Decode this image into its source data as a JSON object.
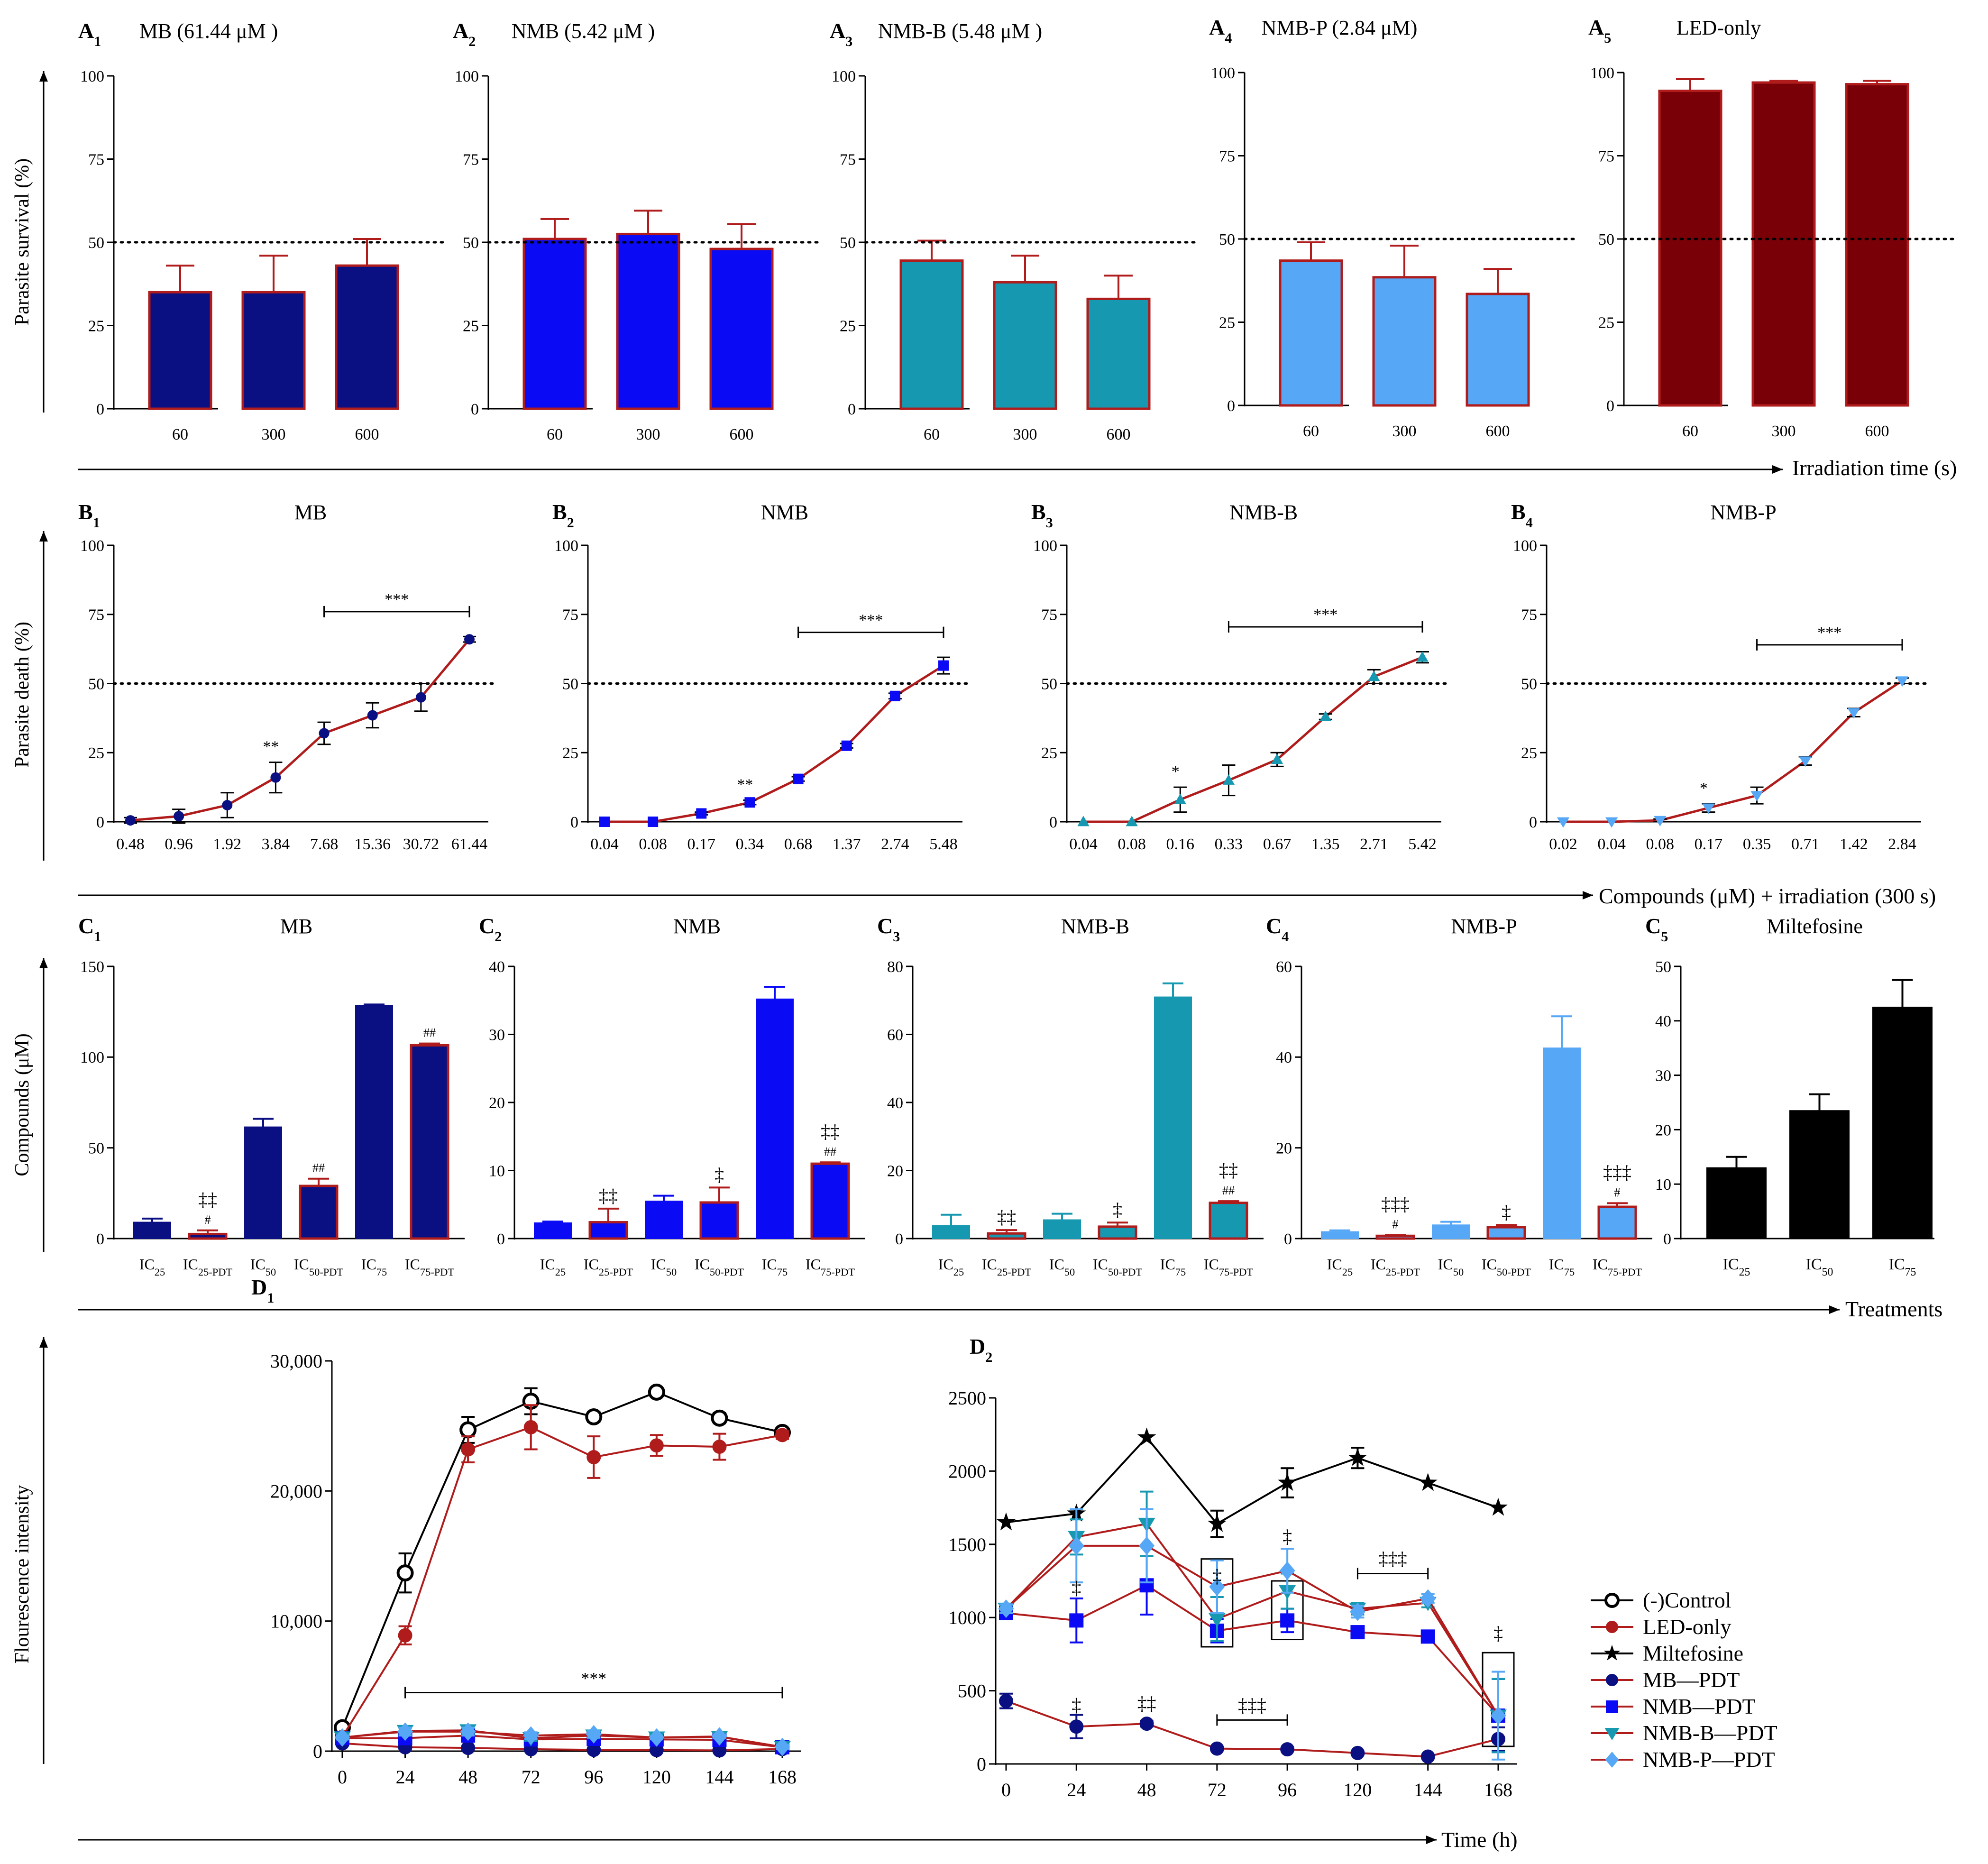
{
  "figure": {
    "rows": [
      {
        "id": "A",
        "y_title": "Parasite survival (%)",
        "x_title": "Irradiation time (s)"
      },
      {
        "id": "B",
        "y_title": "Parasite death (%)",
        "x_title": "Compounds (μM) + irradiation (300 s)"
      },
      {
        "id": "C",
        "y_title": "Compounds (μM)",
        "x_title": "Treatments"
      },
      {
        "id": "D",
        "y_title": "Flourescence intensity",
        "x_title": "Time (h)"
      }
    ],
    "legend": [
      "(-)Control",
      "LED-only",
      "Miltefosine",
      "MB—PDT",
      "NMB—PDT",
      "NMB-B—PDT",
      "NMB-P—PDT"
    ]
  },
  "colors": {
    "MB": "#0a0f82",
    "NMB": "#0a0af5",
    "NMB-B": "#1698b0",
    "NMB-P": "#56a7f5",
    "LED": "#7a0008",
    "red": "#b01c1c",
    "black": "#000000",
    "grid": "#000000"
  },
  "chart_data": [
    {
      "id": "A1",
      "label": "A",
      "sub": "1",
      "type": "bar",
      "title": "MB (61.44 μM )",
      "color": "MB",
      "categories": [
        "60",
        "300",
        "600"
      ],
      "values": [
        35,
        35,
        43
      ],
      "errors": [
        8,
        11,
        8
      ],
      "ylim": [
        0,
        100
      ],
      "yticks": [
        0,
        25,
        50,
        75,
        100
      ],
      "threshold": 50
    },
    {
      "id": "A2",
      "label": "A",
      "sub": "2",
      "type": "bar",
      "title": "NMB (5.42 μM )",
      "color": "NMB",
      "categories": [
        "60",
        "300",
        "600"
      ],
      "values": [
        51,
        52.5,
        48
      ],
      "errors": [
        6,
        7,
        7.5
      ],
      "ylim": [
        0,
        100
      ],
      "yticks": [
        0,
        25,
        50,
        75,
        100
      ],
      "threshold": 50
    },
    {
      "id": "A3",
      "label": "A",
      "sub": "3",
      "type": "bar",
      "title": "NMB-B (5.48 μM )",
      "color": "NMB-B",
      "categories": [
        "60",
        "300",
        "600"
      ],
      "values": [
        44.5,
        38,
        33
      ],
      "errors": [
        6,
        8,
        7
      ],
      "ylim": [
        0,
        100
      ],
      "yticks": [
        0,
        25,
        50,
        75,
        100
      ],
      "threshold": 50
    },
    {
      "id": "A4",
      "label": "A",
      "sub": "4",
      "type": "bar",
      "title": "NMB-P (2.84 μM)",
      "color": "NMB-P",
      "categories": [
        "60",
        "300",
        "600"
      ],
      "values": [
        43.5,
        38.5,
        33.5
      ],
      "errors": [
        5.5,
        9.5,
        7.5
      ],
      "ylim": [
        0,
        100
      ],
      "yticks": [
        0,
        25,
        50,
        75,
        100
      ],
      "threshold": 50
    },
    {
      "id": "A5",
      "label": "A",
      "sub": "5",
      "type": "bar",
      "title": "LED-only",
      "color": "LED",
      "categories": [
        "60",
        "300",
        "600"
      ],
      "values": [
        94.5,
        97,
        96.5
      ],
      "errors": [
        3.5,
        0.5,
        1
      ],
      "ylim": [
        0,
        100
      ],
      "yticks": [
        0,
        25,
        50,
        75,
        100
      ],
      "threshold": 50
    },
    {
      "id": "B1",
      "label": "B",
      "sub": "1",
      "type": "line",
      "title": "MB",
      "color": "MB",
      "marker": "circle",
      "categories": [
        "0.48",
        "0.96",
        "1.92",
        "3.84",
        "7.68",
        "15.36",
        "30.72",
        "61.44"
      ],
      "values": [
        0.5,
        2,
        6,
        16,
        32,
        38.5,
        45,
        66
      ],
      "errors": [
        1,
        2.5,
        4.5,
        5.5,
        4,
        4.5,
        5,
        1
      ],
      "ylim": [
        0,
        100
      ],
      "yticks": [
        0,
        25,
        50,
        75,
        100
      ],
      "threshold": 50,
      "annotations": [
        {
          "at": 3,
          "text": "**"
        }
      ],
      "bracket": {
        "from": 4,
        "to": 7,
        "text": "***"
      }
    },
    {
      "id": "B2",
      "label": "B",
      "sub": "2",
      "type": "line",
      "title": "NMB",
      "color": "NMB",
      "marker": "square",
      "categories": [
        "0.04",
        "0.08",
        "0.17",
        "0.34",
        "0.68",
        "1.37",
        "2.74",
        "5.48"
      ],
      "values": [
        0,
        0,
        3,
        7,
        15.5,
        27.5,
        45.5,
        56.5
      ],
      "errors": [
        0,
        0,
        0.5,
        0.8,
        0.8,
        0.8,
        1,
        3
      ],
      "ylim": [
        0,
        100
      ],
      "yticks": [
        0,
        25,
        50,
        75,
        100
      ],
      "threshold": 50,
      "annotations": [
        {
          "at": 3,
          "text": "**"
        }
      ],
      "bracket": {
        "from": 4,
        "to": 7,
        "text": "***"
      }
    },
    {
      "id": "B3",
      "label": "B",
      "sub": "3",
      "type": "line",
      "title": "NMB-B",
      "color": "NMB-B",
      "marker": "triangle",
      "categories": [
        "0.04",
        "0.08",
        "0.16",
        "0.33",
        "0.67",
        "1.35",
        "2.71",
        "5.42"
      ],
      "values": [
        0,
        0,
        8,
        15,
        22.5,
        38,
        52.5,
        59.5
      ],
      "errors": [
        0,
        0,
        4.5,
        5.5,
        2.5,
        1,
        2.5,
        2
      ],
      "ylim": [
        0,
        100
      ],
      "yticks": [
        0,
        25,
        50,
        75,
        100
      ],
      "threshold": 50,
      "annotations": [
        {
          "at": 2,
          "text": "*"
        }
      ],
      "bracket": {
        "from": 3,
        "to": 7,
        "text": "***"
      }
    },
    {
      "id": "B4",
      "label": "B",
      "sub": "4",
      "type": "line",
      "title": "NMB-P",
      "color": "NMB-P",
      "marker": "triangle-down",
      "categories": [
        "0.02",
        "0.04",
        "0.08",
        "0.17",
        "0.35",
        "0.71",
        "1.42",
        "2.84"
      ],
      "values": [
        0,
        0,
        0.5,
        5,
        9.5,
        22,
        39.5,
        51
      ],
      "errors": [
        0,
        0,
        0.5,
        1.5,
        3,
        1.5,
        1.5,
        1
      ],
      "ylim": [
        0,
        100
      ],
      "yticks": [
        0,
        25,
        50,
        75,
        100
      ],
      "threshold": 50,
      "annotations": [
        {
          "at": 3,
          "text": "*"
        }
      ],
      "bracket": {
        "from": 4,
        "to": 7,
        "text": "***"
      }
    },
    {
      "id": "C1",
      "label": "C",
      "sub": "1",
      "type": "bar",
      "title": "MB",
      "color": "MB",
      "categories": [
        {
          "b": "IC",
          "s": "25"
        },
        {
          "b": "IC",
          "s": "25-PDT"
        },
        {
          "b": "IC",
          "s": "50"
        },
        {
          "b": "IC",
          "s": "50-PDT"
        },
        {
          "b": "IC",
          "s": "75"
        },
        {
          "b": "IC",
          "s": "75-PDT"
        }
      ],
      "values": [
        9,
        2.5,
        61.5,
        29,
        128.5,
        106.5
      ],
      "errors": [
        2,
        2,
        4.5,
        4,
        0.5,
        1
      ],
      "pdt": [
        false,
        true,
        false,
        true,
        false,
        true
      ],
      "marks": [
        "",
        "#",
        "",
        "##",
        "",
        "##"
      ],
      "dagger": [
        "",
        "‡‡",
        "",
        "",
        "",
        ""
      ],
      "ylim": [
        0,
        150
      ],
      "yticks": [
        0,
        50,
        100,
        150
      ]
    },
    {
      "id": "C2",
      "label": "C",
      "sub": "2",
      "type": "bar",
      "title": "NMB",
      "color": "NMB",
      "categories": [
        {
          "b": "IC",
          "s": "25"
        },
        {
          "b": "IC",
          "s": "25-PDT"
        },
        {
          "b": "IC",
          "s": "50"
        },
        {
          "b": "IC",
          "s": "50-PDT"
        },
        {
          "b": "IC",
          "s": "75"
        },
        {
          "b": "IC",
          "s": "75-PDT"
        }
      ],
      "values": [
        2.3,
        2.4,
        5.5,
        5.3,
        35.2,
        11
      ],
      "errors": [
        0.2,
        2,
        0.8,
        2.2,
        1.8,
        0.2
      ],
      "pdt": [
        false,
        true,
        false,
        true,
        false,
        true
      ],
      "marks": [
        "",
        "",
        "",
        "",
        "",
        "##"
      ],
      "dagger": [
        "",
        "‡‡",
        "",
        "‡",
        "",
        "‡‡"
      ],
      "ylim": [
        0,
        40
      ],
      "yticks": [
        0,
        10,
        20,
        30,
        40
      ]
    },
    {
      "id": "C3",
      "label": "C",
      "sub": "3",
      "type": "bar",
      "title": "NMB-B",
      "color": "NMB-B",
      "categories": [
        {
          "b": "IC",
          "s": "25"
        },
        {
          "b": "IC",
          "s": "25-PDT"
        },
        {
          "b": "IC",
          "s": "50"
        },
        {
          "b": "IC",
          "s": "50-PDT"
        },
        {
          "b": "IC",
          "s": "75"
        },
        {
          "b": "IC",
          "s": "75-PDT"
        }
      ],
      "values": [
        3.8,
        1.5,
        5.5,
        3.5,
        71,
        10.5
      ],
      "errors": [
        3.2,
        1,
        1.8,
        1.2,
        4,
        0.5
      ],
      "pdt": [
        false,
        true,
        false,
        true,
        false,
        true
      ],
      "marks": [
        "",
        "",
        "",
        "",
        "",
        "##"
      ],
      "dagger": [
        "",
        "‡‡",
        "",
        "‡",
        "",
        "‡‡"
      ],
      "ylim": [
        0,
        80
      ],
      "yticks": [
        0,
        20,
        40,
        60,
        80
      ]
    },
    {
      "id": "C4",
      "label": "C",
      "sub": "4",
      "type": "bar",
      "title": "NMB-P",
      "color": "NMB-P",
      "categories": [
        {
          "b": "IC",
          "s": "25"
        },
        {
          "b": "IC",
          "s": "25-PDT"
        },
        {
          "b": "IC",
          "s": "50"
        },
        {
          "b": "IC",
          "s": "50-PDT"
        },
        {
          "b": "IC",
          "s": "75"
        },
        {
          "b": "IC",
          "s": "75-PDT"
        }
      ],
      "values": [
        1.5,
        0.6,
        3,
        2.5,
        42,
        7
      ],
      "errors": [
        0.3,
        0.2,
        0.7,
        0.5,
        7,
        0.8
      ],
      "pdt": [
        false,
        true,
        false,
        true,
        false,
        true
      ],
      "marks": [
        "",
        "#",
        "",
        "",
        "",
        "#"
      ],
      "dagger": [
        "",
        "‡‡‡",
        "",
        "‡",
        "",
        "‡‡‡"
      ],
      "ylim": [
        0,
        60
      ],
      "yticks": [
        0,
        20,
        40,
        60
      ]
    },
    {
      "id": "C5",
      "label": "C",
      "sub": "5",
      "type": "bar",
      "title": "Miltefosine",
      "color": "black",
      "categories": [
        {
          "b": "IC",
          "s": "25"
        },
        {
          "b": "IC",
          "s": "50"
        },
        {
          "b": "IC",
          "s": "75"
        }
      ],
      "values": [
        13,
        23.5,
        42.5
      ],
      "errors": [
        2,
        3,
        5
      ],
      "ylim": [
        0,
        50
      ],
      "yticks": [
        0,
        10,
        20,
        30,
        40,
        50
      ]
    },
    {
      "id": "D1",
      "label": "D",
      "sub": "1",
      "type": "line",
      "title": "",
      "x": [
        0,
        24,
        48,
        72,
        96,
        120,
        144,
        168
      ],
      "xticks": [
        "0",
        "24",
        "48",
        "72",
        "96",
        "120",
        "144",
        "168"
      ],
      "ylim": [
        0,
        30000
      ],
      "yticks": [
        0,
        10000,
        20000,
        30000
      ],
      "ytick_labels": [
        "0",
        "10,000",
        "20,000",
        "30,000"
      ],
      "bracket": {
        "from": 24,
        "to": 168,
        "value": 4500,
        "text": "***"
      },
      "series": [
        {
          "name": "(-)Control",
          "color": "black",
          "marker": "open-circle",
          "values": [
            1800,
            13700,
            24700,
            26900,
            25700,
            27600,
            25600,
            24500
          ],
          "errors": [
            300,
            1500,
            1000,
            1000,
            400,
            300,
            400,
            300
          ]
        },
        {
          "name": "LED-only",
          "color": "red",
          "marker": "circle",
          "values": [
            1100,
            8900,
            23200,
            24900,
            22600,
            23500,
            23400,
            24300
          ],
          "errors": [
            200,
            700,
            1000,
            1700,
            1600,
            800,
            1000,
            300
          ]
        },
        {
          "name": "MB—PDT",
          "color": "MB",
          "marker": "circle",
          "values": [
            600,
            300,
            250,
            150,
            100,
            80,
            60,
            170
          ],
          "errors": [
            150,
            100,
            50,
            50,
            50,
            30,
            20,
            50
          ]
        },
        {
          "name": "NMB—PDT",
          "color": "NMB",
          "marker": "square",
          "values": [
            1000,
            1000,
            1200,
            900,
            950,
            900,
            870,
            300
          ],
          "errors": [
            150,
            200,
            200,
            150,
            150,
            100,
            50,
            100
          ]
        },
        {
          "name": "NMB-B—PDT",
          "color": "NMB-B",
          "marker": "triangle-down",
          "values": [
            1050,
            1550,
            1600,
            1000,
            1200,
            1050,
            1100,
            320
          ],
          "errors": [
            150,
            200,
            300,
            200,
            200,
            150,
            100,
            150
          ]
        },
        {
          "name": "NMB-P—PDT",
          "color": "NMB-P",
          "marker": "diamond",
          "values": [
            1050,
            1500,
            1500,
            1200,
            1300,
            1050,
            1130,
            320
          ],
          "errors": [
            150,
            300,
            300,
            250,
            250,
            100,
            100,
            150
          ]
        }
      ]
    },
    {
      "id": "D2",
      "label": "D",
      "sub": "2",
      "type": "line",
      "title": "",
      "x": [
        0,
        24,
        48,
        72,
        96,
        120,
        144,
        168
      ],
      "xticks": [
        "0",
        "24",
        "48",
        "72",
        "96",
        "120",
        "144",
        "168"
      ],
      "ylim": [
        0,
        2500
      ],
      "yticks": [
        0,
        500,
        1000,
        1500,
        2000,
        2500
      ],
      "ytick_labels": [
        "0",
        "500",
        "1000",
        "1500",
        "2000",
        "2500"
      ],
      "series": [
        {
          "name": "Miltefosine",
          "color": "black",
          "marker": "star",
          "values": [
            1650,
            1710,
            2230,
            1640,
            1920,
            2090,
            1920,
            1750
          ],
          "errors": [
            0,
            0,
            0,
            90,
            100,
            70,
            0,
            0
          ]
        },
        {
          "name": "MB—PDT",
          "color": "MB",
          "marker": "circle",
          "values": [
            430,
            255,
            275,
            105,
            100,
            75,
            50,
            170
          ],
          "errors": [
            50,
            80,
            20,
            10,
            10,
            10,
            10,
            80
          ]
        },
        {
          "name": "NMB—PDT",
          "color": "NMB",
          "marker": "square",
          "values": [
            1030,
            980,
            1220,
            910,
            980,
            900,
            870,
            330
          ],
          "errors": [
            30,
            150,
            200,
            80,
            80,
            40,
            30,
            250
          ]
        },
        {
          "name": "NMB-B—PDT",
          "color": "NMB-B",
          "marker": "triangle-down",
          "values": [
            1060,
            1550,
            1640,
            990,
            1180,
            1060,
            1100,
            330
          ],
          "errors": [
            30,
            120,
            220,
            150,
            120,
            40,
            30,
            250
          ]
        },
        {
          "name": "NMB-P—PDT",
          "color": "NMB-P",
          "marker": "diamond",
          "values": [
            1060,
            1490,
            1490,
            1210,
            1320,
            1040,
            1130,
            330
          ],
          "errors": [
            30,
            250,
            250,
            180,
            150,
            40,
            30,
            300
          ]
        }
      ],
      "dagger_marks": [
        {
          "x": 24,
          "value": 360,
          "text": "‡"
        },
        {
          "x": 48,
          "value": 370,
          "text": "‡‡"
        },
        {
          "x": 24,
          "value": 1160,
          "text": "‡"
        },
        {
          "x": 72,
          "value": 1240,
          "text": "‡"
        },
        {
          "x": 96,
          "value": 1510,
          "text": "‡"
        },
        {
          "x": 168,
          "value": 850,
          "text": "‡"
        }
      ],
      "brackets": [
        {
          "from": 72,
          "to": 96,
          "value": 300,
          "text": "‡‡‡"
        },
        {
          "from": 120,
          "to": 144,
          "value": 1300,
          "text": "‡‡‡"
        }
      ],
      "boxes": [
        {
          "x": 72,
          "lo": 800,
          "hi": 1400
        },
        {
          "x": 96,
          "lo": 850,
          "hi": 1250
        },
        {
          "x": 168,
          "lo": 120,
          "hi": 760
        }
      ]
    }
  ]
}
